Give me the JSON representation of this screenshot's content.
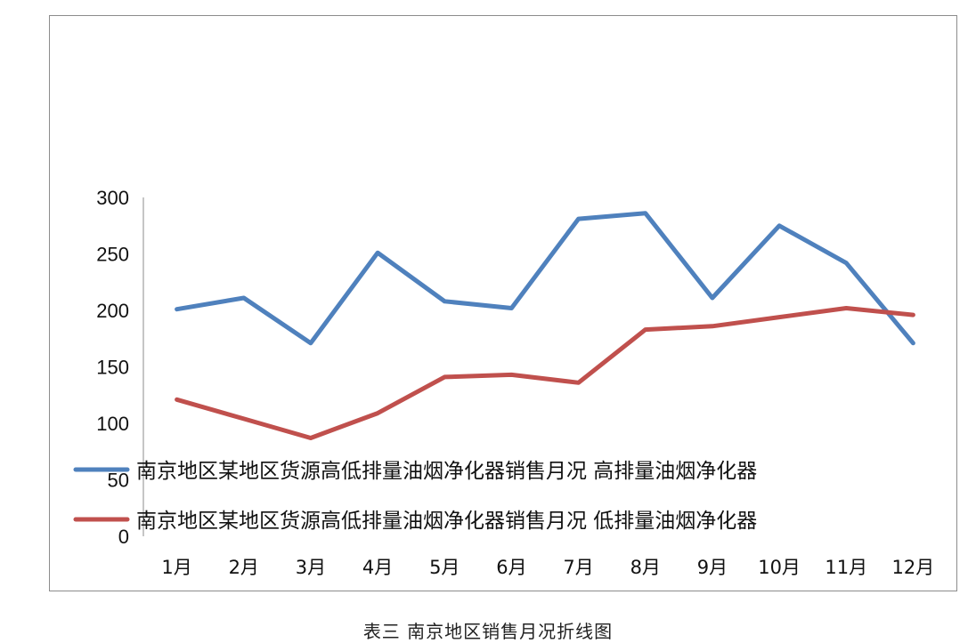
{
  "chart_data": {
    "type": "line",
    "title": "",
    "xlabel": "",
    "ylabel": "",
    "categories": [
      "1月",
      "2月",
      "3月",
      "4月",
      "5月",
      "6月",
      "7月",
      "8月",
      "9月",
      "10月",
      "11月",
      "12月"
    ],
    "ylim": [
      0,
      300
    ],
    "yticks": [
      0,
      50,
      100,
      150,
      200,
      250,
      300
    ],
    "grid": false,
    "legend_placement": "bottom-left overlapping plot",
    "series": [
      {
        "name": "南京地区某地区货源高低排量油烟净化器销售月况 高排量油烟净化器",
        "color": "#4f81bd",
        "values": [
          201,
          211,
          171,
          251,
          208,
          202,
          281,
          286,
          211,
          275,
          242,
          171
        ]
      },
      {
        "name": "南京地区某地区货源高低排量油烟净化器销售月况 低排量油烟净化器",
        "color": "#c0504d",
        "values": [
          121,
          104,
          87,
          109,
          141,
          143,
          136,
          183,
          186,
          194,
          202,
          196
        ]
      }
    ]
  },
  "caption": "表三 南京地区销售月况折线图"
}
